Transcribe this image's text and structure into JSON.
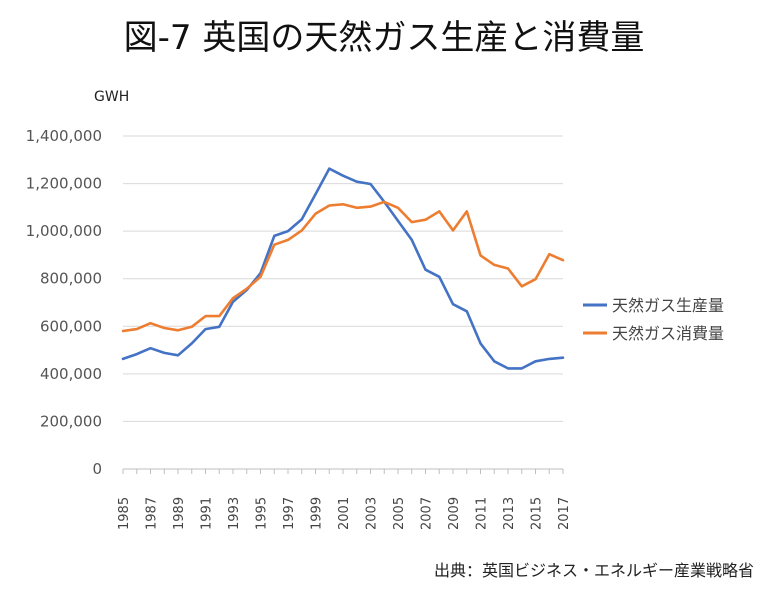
{
  "chart_data": {
    "type": "line",
    "title": "図-7 英国の天然ガス生産と消費量",
    "unit_label": "GWH",
    "source": "出典：英国ビジネス・エネルギー産業戦略省",
    "ylim": [
      0,
      1400000
    ],
    "yticks": [
      0,
      200000,
      400000,
      600000,
      800000,
      1000000,
      1200000,
      1400000
    ],
    "ytick_labels": [
      "0",
      "200,000",
      "400,000",
      "600,000",
      "800,000",
      "1,000,000",
      "1,200,000",
      "1,400,000"
    ],
    "x": [
      1985,
      1986,
      1987,
      1988,
      1989,
      1990,
      1991,
      1992,
      1993,
      1994,
      1995,
      1996,
      1997,
      1998,
      1999,
      2000,
      2001,
      2002,
      2003,
      2004,
      2005,
      2006,
      2007,
      2008,
      2009,
      2010,
      2011,
      2012,
      2013,
      2014,
      2015,
      2016,
      2017
    ],
    "xtick_labels": [
      "1985",
      "1987",
      "1989",
      "1991",
      "1993",
      "1995",
      "1997",
      "1999",
      "2001",
      "2003",
      "2005",
      "2007",
      "2009",
      "2011",
      "2013",
      "2015",
      "2017"
    ],
    "grid": "horizontal",
    "legend_position": "right",
    "series": [
      {
        "name": "天然ガス生産量",
        "color": "#4472C4",
        "values": [
          463000,
          483000,
          508000,
          488000,
          478000,
          528000,
          588000,
          598000,
          703000,
          753000,
          823000,
          980000,
          1000000,
          1050000,
          1155000,
          1263000,
          1233000,
          1208000,
          1198000,
          1123000,
          1043000,
          963000,
          838000,
          808000,
          693000,
          663000,
          528000,
          453000,
          423000,
          423000,
          453000,
          463000,
          468000
        ]
      },
      {
        "name": "天然ガス消費量",
        "color": "#ED7D31",
        "values": [
          580000,
          588000,
          613000,
          593000,
          583000,
          598000,
          643000,
          643000,
          718000,
          758000,
          808000,
          943000,
          963000,
          1003000,
          1073000,
          1108000,
          1113000,
          1098000,
          1103000,
          1123000,
          1098000,
          1038000,
          1048000,
          1083000,
          1003000,
          1083000,
          898000,
          858000,
          843000,
          768000,
          798000,
          903000,
          878000
        ]
      }
    ]
  }
}
